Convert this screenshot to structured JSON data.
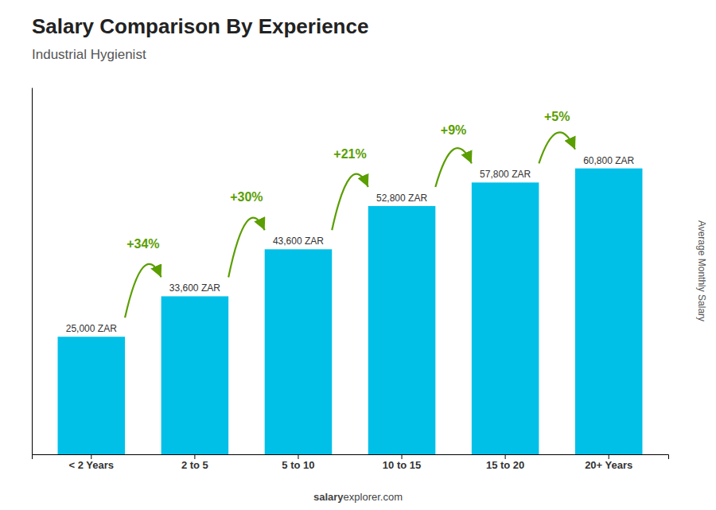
{
  "chart_data": {
    "type": "bar",
    "title": "Salary Comparison By Experience",
    "subtitle": "Industrial Hygienist",
    "categories": [
      "< 2 Years",
      "2 to 5",
      "5 to 10",
      "10 to 15",
      "15 to 20",
      "20+ Years"
    ],
    "values": [
      25000,
      33600,
      43600,
      52800,
      57800,
      60800
    ],
    "value_labels": [
      "25,000 ZAR",
      "33,600 ZAR",
      "43,600 ZAR",
      "52,800 ZAR",
      "57,800 ZAR",
      "60,800 ZAR"
    ],
    "data_labels": true,
    "pct_changes": [
      null,
      "+34%",
      "+30%",
      "+21%",
      "+9%",
      "+5%"
    ],
    "color": "#00C0E8",
    "ylabel": "Average Monthly Salary",
    "watermark": [
      "salary",
      "explorer.com"
    ],
    "ylim": [
      0,
      78000
    ],
    "tick_labels": "x",
    "grid": false
  }
}
